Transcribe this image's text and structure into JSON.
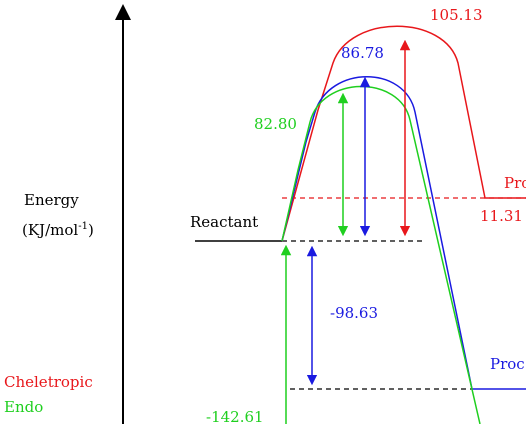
{
  "axis_label_line1": "Energy",
  "axis_label_line2_main": "(KJ/mol",
  "axis_label_line2_sup": "-1",
  "axis_label_line2_end": ")",
  "reactant_label": "Reactant",
  "legend": [
    {
      "text": "Cheletropic",
      "color": "#e8171b"
    },
    {
      "text": "Endo",
      "color": "#1fcf1f"
    }
  ],
  "values": {
    "cheletropic_ts": "105.13",
    "blue_ts": "86.78",
    "endo_ts": "82.80",
    "cheletropic_product": "11.31",
    "blue_product": "-98.63",
    "endo_product": "-142.61"
  },
  "product_labels": {
    "cheletropic": "Pro",
    "blue": "Proc"
  },
  "colors": {
    "cheletropic": "#e8171b",
    "blue": "#1a1ae0",
    "endo": "#1fcf1f",
    "axis": "#000000"
  }
}
